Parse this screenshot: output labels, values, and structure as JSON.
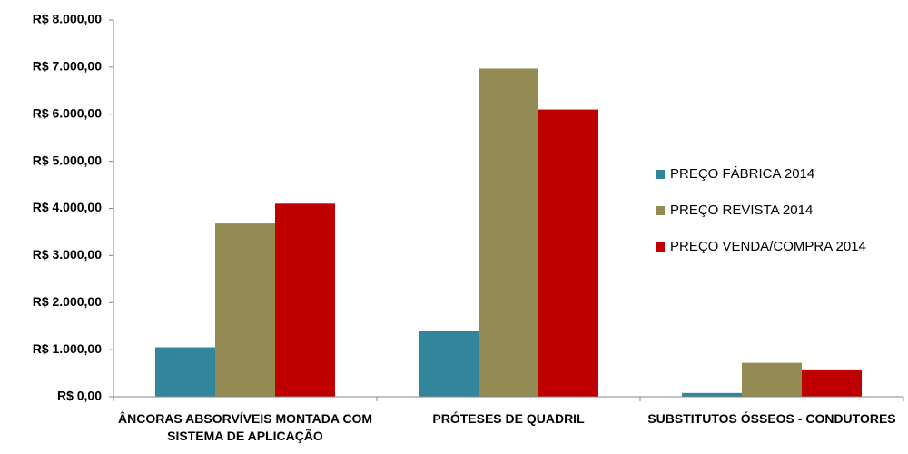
{
  "chart_data": {
    "type": "bar",
    "categories": [
      "ÂNCORAS ABSORVÍVEIS MONTADA COM SISTEMA DE APLICAÇÃO",
      "PRÓTESES DE QUADRIL",
      "SUBSTITUTOS ÓSSEOS - CONDUTORES"
    ],
    "series": [
      {
        "name": "PREÇO FÁBRICA 2014",
        "color": "#31859c",
        "values": [
          1050,
          1400,
          80
        ]
      },
      {
        "name": "PREÇO REVISTA 2014",
        "color": "#948a54",
        "values": [
          3680,
          6970,
          720
        ]
      },
      {
        "name": "PREÇO VENDA/COMPRA 2014",
        "color": "#c00000",
        "values": [
          4100,
          6100,
          580
        ]
      }
    ],
    "ylim": [
      0,
      8000
    ],
    "yticks": [
      {
        "value": 0,
        "label": "R$ 0,00"
      },
      {
        "value": 1000,
        "label": "R$ 1.000,00"
      },
      {
        "value": 2000,
        "label": "R$ 2.000,00"
      },
      {
        "value": 3000,
        "label": "R$ 3.000,00"
      },
      {
        "value": 4000,
        "label": "R$ 4.000,00"
      },
      {
        "value": 5000,
        "label": "R$ 5.000,00"
      },
      {
        "value": 6000,
        "label": "R$ 6.000,00"
      },
      {
        "value": 7000,
        "label": "R$ 7.000,00"
      },
      {
        "value": 8000,
        "label": "R$ 8.000,00"
      }
    ],
    "grid": false,
    "legend": "right"
  }
}
